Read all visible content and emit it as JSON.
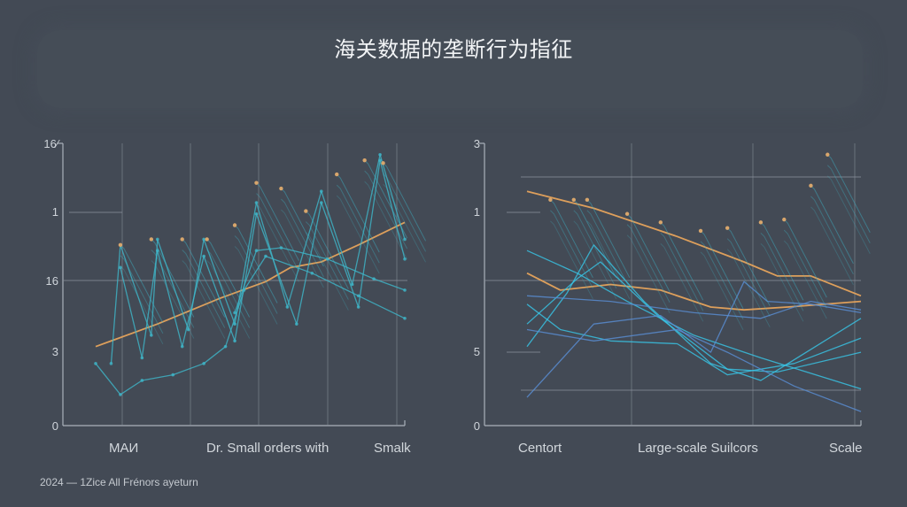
{
  "title": "海关数据的垄断行为指征",
  "footer": "2024 — 1Zice All Frénors ayeturn",
  "colors": {
    "background": "#434a55",
    "axis": "#aab1ba",
    "grid": "#8a929c",
    "trend_orange": "#e6a35c",
    "series_teal": "#3fb6c9",
    "series_cyan": "#38c7e8",
    "series_blue": "#5a8fd6"
  },
  "chart_data": [
    {
      "type": "line",
      "title": "",
      "xlabel": "",
      "ylabel": "",
      "yticks": [
        "0",
        "3",
        "16",
        "1",
        "16⁄"
      ],
      "categories": [
        "MAИ",
        "Dr. Small orders with",
        "Smalk"
      ],
      "grid": true,
      "series": [
        {
          "name": "trend",
          "color": "#e6a35c",
          "points": [
            [
              0,
              2.8
            ],
            [
              0.2,
              3.6
            ],
            [
              0.4,
              4.5
            ],
            [
              0.55,
              5.1
            ],
            [
              0.63,
              5.6
            ],
            [
              0.73,
              5.8
            ],
            [
              0.85,
              6.4
            ],
            [
              1.0,
              7.2
            ]
          ]
        },
        {
          "name": "sawtooth-1",
          "color": "#3fb6c9",
          "points": [
            [
              0.05,
              2.2
            ],
            [
              0.08,
              6.4
            ],
            [
              0.18,
              3.2
            ],
            [
              0.2,
              6.6
            ],
            [
              0.3,
              3.4
            ],
            [
              0.35,
              6.6
            ],
            [
              0.45,
              3.6
            ],
            [
              0.52,
              7.9
            ],
            [
              0.62,
              4.2
            ],
            [
              0.73,
              8.3
            ],
            [
              0.83,
              5.0
            ],
            [
              0.92,
              9.6
            ],
            [
              1.0,
              6.6
            ]
          ]
        },
        {
          "name": "sawtooth-2",
          "color": "#3fb6c9",
          "points": [
            [
              0.08,
              5.6
            ],
            [
              0.15,
              2.4
            ],
            [
              0.2,
              6.2
            ],
            [
              0.28,
              2.8
            ],
            [
              0.35,
              6.0
            ],
            [
              0.45,
              3.0
            ],
            [
              0.52,
              7.5
            ],
            [
              0.65,
              3.6
            ],
            [
              0.73,
              7.9
            ],
            [
              0.85,
              4.2
            ],
            [
              0.92,
              9.4
            ],
            [
              1.0,
              5.9
            ]
          ]
        },
        {
          "name": "trough",
          "color": "#3fb6c9",
          "points": [
            [
              0,
              2.2
            ],
            [
              0.08,
              1.1
            ],
            [
              0.15,
              1.6
            ],
            [
              0.25,
              1.8
            ],
            [
              0.35,
              2.2
            ],
            [
              0.42,
              2.8
            ],
            [
              0.48,
              4.8
            ],
            [
              0.55,
              6.0
            ],
            [
              0.7,
              5.4
            ],
            [
              0.85,
              4.6
            ],
            [
              1.0,
              3.8
            ]
          ]
        },
        {
          "name": "upper-envelope",
          "color": "#3fb6c9",
          "points": [
            [
              0.45,
              4.0
            ],
            [
              0.52,
              6.2
            ],
            [
              0.6,
              6.3
            ],
            [
              0.75,
              5.9
            ],
            [
              0.9,
              5.2
            ],
            [
              1.0,
              4.8
            ]
          ]
        }
      ],
      "peak_markers": [
        [
          0.08,
          6.4
        ],
        [
          0.18,
          6.6
        ],
        [
          0.28,
          6.6
        ],
        [
          0.36,
          6.6
        ],
        [
          0.45,
          7.1
        ],
        [
          0.52,
          8.6
        ],
        [
          0.6,
          8.4
        ],
        [
          0.68,
          7.6
        ],
        [
          0.78,
          8.9
        ],
        [
          0.87,
          9.4
        ],
        [
          0.93,
          9.3
        ]
      ]
    },
    {
      "type": "line",
      "title": "",
      "xlabel": "",
      "ylabel": "",
      "yticks": [
        "0",
        "5",
        "1",
        "3"
      ],
      "categories": [
        "Centort",
        "Large-scale Suilcors",
        "Scale"
      ],
      "grid": true,
      "series": [
        {
          "name": "orange-upper",
          "color": "#e6a35c",
          "points": [
            [
              0,
              8.3
            ],
            [
              0.2,
              7.7
            ],
            [
              0.45,
              6.7
            ],
            [
              0.65,
              5.8
            ],
            [
              0.75,
              5.3
            ],
            [
              0.85,
              5.3
            ],
            [
              1.0,
              4.6
            ]
          ]
        },
        {
          "name": "orange-mid",
          "color": "#e6a35c",
          "points": [
            [
              0,
              5.4
            ],
            [
              0.1,
              4.8
            ],
            [
              0.25,
              5.0
            ],
            [
              0.4,
              4.8
            ],
            [
              0.55,
              4.2
            ],
            [
              0.65,
              4.1
            ],
            [
              0.78,
              4.2
            ],
            [
              1.0,
              4.4
            ]
          ]
        },
        {
          "name": "cyan-peak-1",
          "color": "#38c7e8",
          "points": [
            [
              0,
              2.8
            ],
            [
              0.12,
              4.7
            ],
            [
              0.2,
              6.4
            ],
            [
              0.35,
              4.4
            ],
            [
              0.55,
              2.2
            ],
            [
              0.7,
              1.6
            ],
            [
              1.0,
              3.8
            ]
          ]
        },
        {
          "name": "cyan-peak-2",
          "color": "#38c7e8",
          "points": [
            [
              0,
              3.6
            ],
            [
              0.15,
              5.2
            ],
            [
              0.22,
              5.8
            ],
            [
              0.4,
              3.8
            ],
            [
              0.6,
              2.0
            ],
            [
              0.75,
              1.9
            ],
            [
              1.0,
              2.6
            ]
          ]
        },
        {
          "name": "cyan-rise",
          "color": "#38c7e8",
          "points": [
            [
              0,
              4.3
            ],
            [
              0.1,
              3.4
            ],
            [
              0.25,
              3.0
            ],
            [
              0.45,
              2.9
            ],
            [
              0.6,
              1.8
            ],
            [
              0.8,
              2.2
            ],
            [
              1.0,
              3.1
            ]
          ]
        },
        {
          "name": "cyan-fall",
          "color": "#38c7e8",
          "points": [
            [
              0,
              6.2
            ],
            [
              0.15,
              5.4
            ],
            [
              0.3,
              4.4
            ],
            [
              0.5,
              3.2
            ],
            [
              0.7,
              2.4
            ],
            [
              1.0,
              1.3
            ]
          ]
        },
        {
          "name": "blue-zig",
          "color": "#5a8fd6",
          "points": [
            [
              0,
              1.0
            ],
            [
              0.2,
              3.6
            ],
            [
              0.4,
              3.9
            ],
            [
              0.55,
              2.6
            ],
            [
              0.65,
              5.1
            ],
            [
              0.72,
              4.4
            ],
            [
              0.85,
              4.3
            ],
            [
              1.0,
              4.0
            ]
          ]
        },
        {
          "name": "blue-low",
          "color": "#5a8fd6",
          "points": [
            [
              0,
              3.4
            ],
            [
              0.2,
              3.0
            ],
            [
              0.45,
              3.4
            ],
            [
              0.6,
              2.6
            ],
            [
              0.8,
              1.4
            ],
            [
              1.0,
              0.5
            ]
          ]
        },
        {
          "name": "blue-high",
          "color": "#5a8fd6",
          "points": [
            [
              0,
              4.6
            ],
            [
              0.25,
              4.4
            ],
            [
              0.5,
              4.0
            ],
            [
              0.7,
              3.8
            ],
            [
              0.85,
              4.4
            ],
            [
              1.0,
              4.1
            ]
          ]
        }
      ],
      "peak_markers": [
        [
          0.07,
          8.0
        ],
        [
          0.14,
          8.0
        ],
        [
          0.18,
          8.0
        ],
        [
          0.3,
          7.5
        ],
        [
          0.4,
          7.2
        ],
        [
          0.52,
          6.9
        ],
        [
          0.6,
          7.0
        ],
        [
          0.7,
          7.2
        ],
        [
          0.77,
          7.3
        ],
        [
          0.85,
          8.5
        ],
        [
          0.9,
          9.6
        ]
      ]
    }
  ]
}
